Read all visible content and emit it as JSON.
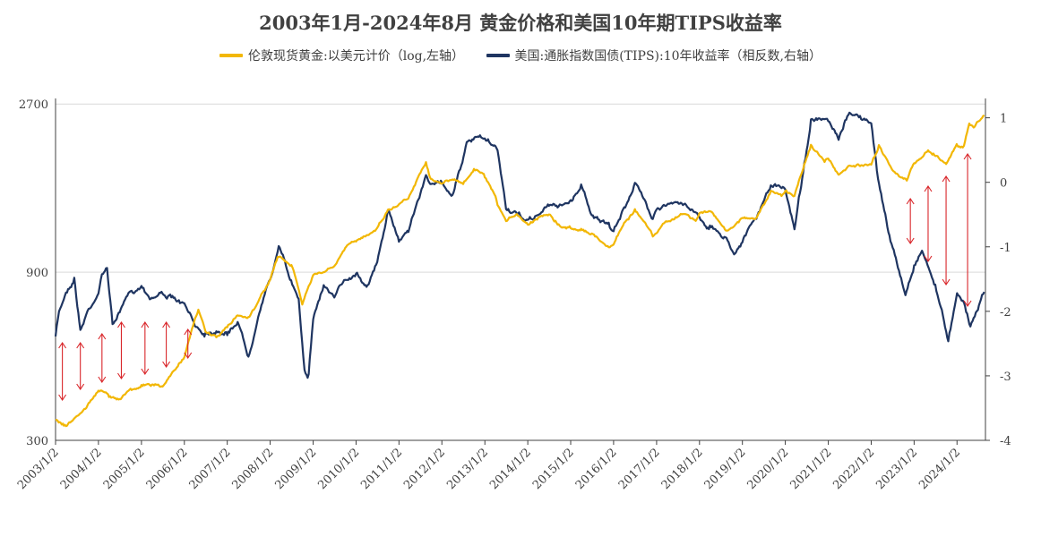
{
  "title": "2003年1月-2024年8月 黄金价格和美国10年期TIPS收益率",
  "colors": {
    "gold": "#F2B705",
    "tips": "#1F3561",
    "arrow": "#D9262A",
    "grid": "#D9D9D9",
    "axis": "#404040"
  },
  "chart_data": {
    "type": "line",
    "title": "2003年1月-2024年8月 黄金价格和美国10年期TIPS收益率",
    "x": [
      "2003/1/2",
      "2004/1/2",
      "2005/1/2",
      "2006/1/2",
      "2007/1/2",
      "2008/1/2",
      "2009/1/2",
      "2010/1/2",
      "2011/1/2",
      "2012/1/2",
      "2013/1/2",
      "2014/1/2",
      "2015/1/2",
      "2016/1/2",
      "2017/1/2",
      "2018/1/2",
      "2019/1/2",
      "2020/1/2",
      "2021/1/2",
      "2022/1/2",
      "2023/1/2",
      "2024/1/2"
    ],
    "x_tick_labels": [
      "2003/1/2",
      "2004/1/2",
      "2005/1/2",
      "2006/1/2",
      "2007/1/2",
      "2008/1/2",
      "2009/1/2",
      "2010/1/2",
      "2011/1/2",
      "2012/1/2",
      "2013/1/2",
      "2014/1/2",
      "2015/1/2",
      "2016/1/2",
      "2017/1/2",
      "2018/1/2",
      "2019/1/2",
      "2020/1/2",
      "2021/1/2",
      "2022/1/2",
      "2023/1/2",
      "2024/1/2"
    ],
    "left_axis": {
      "scale": "log",
      "ticks": [
        300,
        900,
        2700
      ],
      "ylim": [
        300,
        2800
      ]
    },
    "right_axis": {
      "ticks": [
        1,
        0,
        -1,
        -2,
        -3,
        -4
      ],
      "ylim": [
        -4,
        1.3
      ],
      "inverted_label": "相反数"
    },
    "grid": true,
    "legend_position": "top",
    "series": [
      {
        "name": "伦敦现货黄金:以美元计价（log,左轴）",
        "axis": "left",
        "color": "#F2B705",
        "points": [
          [
            "2003/1/2",
            345
          ],
          [
            "2003/4/1",
            330
          ],
          [
            "2003/7/1",
            350
          ],
          [
            "2003/10/1",
            375
          ],
          [
            "2004/1/2",
            415
          ],
          [
            "2004/4/1",
            400
          ],
          [
            "2004/7/1",
            395
          ],
          [
            "2004/10/1",
            420
          ],
          [
            "2005/1/2",
            428
          ],
          [
            "2005/4/1",
            430
          ],
          [
            "2005/7/1",
            425
          ],
          [
            "2005/10/1",
            470
          ],
          [
            "2006/1/2",
            520
          ],
          [
            "2006/5/1",
            700
          ],
          [
            "2006/7/1",
            610
          ],
          [
            "2006/10/1",
            590
          ],
          [
            "2007/1/2",
            630
          ],
          [
            "2007/4/1",
            680
          ],
          [
            "2007/7/1",
            670
          ],
          [
            "2007/10/1",
            750
          ],
          [
            "2008/1/2",
            860
          ],
          [
            "2008/3/15",
            1000
          ],
          [
            "2008/7/1",
            940
          ],
          [
            "2008/10/1",
            730
          ],
          [
            "2009/1/2",
            880
          ],
          [
            "2009/4/1",
            900
          ],
          [
            "2009/7/1",
            930
          ],
          [
            "2009/10/1",
            1050
          ],
          [
            "2010/1/2",
            1100
          ],
          [
            "2010/4/1",
            1150
          ],
          [
            "2010/7/1",
            1200
          ],
          [
            "2010/10/1",
            1350
          ],
          [
            "2011/1/2",
            1400
          ],
          [
            "2011/4/1",
            1480
          ],
          [
            "2011/8/20",
            1850
          ],
          [
            "2011/10/1",
            1650
          ],
          [
            "2012/1/2",
            1600
          ],
          [
            "2012/4/1",
            1650
          ],
          [
            "2012/7/1",
            1600
          ],
          [
            "2012/10/1",
            1760
          ],
          [
            "2013/1/2",
            1680
          ],
          [
            "2013/4/20",
            1400
          ],
          [
            "2013/7/1",
            1250
          ],
          [
            "2013/10/1",
            1320
          ],
          [
            "2014/1/2",
            1230
          ],
          [
            "2014/4/1",
            1290
          ],
          [
            "2014/7/1",
            1320
          ],
          [
            "2014/10/1",
            1220
          ],
          [
            "2015/1/2",
            1200
          ],
          [
            "2015/4/1",
            1200
          ],
          [
            "2015/7/1",
            1150
          ],
          [
            "2015/12/1",
            1060
          ],
          [
            "2016/1/2",
            1080
          ],
          [
            "2016/4/1",
            1240
          ],
          [
            "2016/7/1",
            1350
          ],
          [
            "2016/12/1",
            1140
          ],
          [
            "2017/1/2",
            1160
          ],
          [
            "2017/4/1",
            1260
          ],
          [
            "2017/9/1",
            1320
          ],
          [
            "2017/12/1",
            1260
          ],
          [
            "2018/1/2",
            1320
          ],
          [
            "2018/4/1",
            1340
          ],
          [
            "2018/8/15",
            1180
          ],
          [
            "2018/12/1",
            1250
          ],
          [
            "2019/1/2",
            1290
          ],
          [
            "2019/5/1",
            1280
          ],
          [
            "2019/9/1",
            1520
          ],
          [
            "2019/12/1",
            1480
          ],
          [
            "2020/1/2",
            1530
          ],
          [
            "2020/3/20",
            1480
          ],
          [
            "2020/8/7",
            2060
          ],
          [
            "2020/12/1",
            1850
          ],
          [
            "2021/1/2",
            1900
          ],
          [
            "2021/3/31",
            1690
          ],
          [
            "2021/7/1",
            1800
          ],
          [
            "2021/12/1",
            1800
          ],
          [
            "2022/1/2",
            1820
          ],
          [
            "2022/3/8",
            2050
          ],
          [
            "2022/7/1",
            1760
          ],
          [
            "2022/11/1",
            1640
          ],
          [
            "2023/1/2",
            1830
          ],
          [
            "2023/5/1",
            2000
          ],
          [
            "2023/10/1",
            1830
          ],
          [
            "2023/12/28",
            2060
          ],
          [
            "2024/1/2",
            2060
          ],
          [
            "2024/3/1",
            2050
          ],
          [
            "2024/4/15",
            2380
          ],
          [
            "2024/6/1",
            2330
          ],
          [
            "2024/8/20",
            2510
          ]
        ]
      },
      {
        "name": "美国:通胀指数国债(TIPS):10年收益率（相反数,右轴）",
        "axis": "right",
        "color": "#1F3561",
        "points": [
          [
            "2003/1/2",
            -2.4
          ],
          [
            "2003/2/1",
            -2.0
          ],
          [
            "2003/4/1",
            -1.7
          ],
          [
            "2003/6/10",
            -1.5
          ],
          [
            "2003/8/1",
            -2.3
          ],
          [
            "2003/10/1",
            -2.0
          ],
          [
            "2004/1/2",
            -1.7
          ],
          [
            "2004/2/1",
            -1.45
          ],
          [
            "2004/3/15",
            -1.3
          ],
          [
            "2004/5/1",
            -2.2
          ],
          [
            "2004/7/1",
            -2.0
          ],
          [
            "2004/10/1",
            -1.7
          ],
          [
            "2005/1/2",
            -1.6
          ],
          [
            "2005/4/1",
            -1.8
          ],
          [
            "2005/7/1",
            -1.7
          ],
          [
            "2005/10/1",
            -1.8
          ],
          [
            "2006/1/2",
            -1.9
          ],
          [
            "2006/4/1",
            -2.2
          ],
          [
            "2006/7/1",
            -2.35
          ],
          [
            "2006/10/1",
            -2.3
          ],
          [
            "2007/1/2",
            -2.35
          ],
          [
            "2007/4/1",
            -2.15
          ],
          [
            "2007/7/1",
            -2.7
          ],
          [
            "2007/10/1",
            -2.0
          ],
          [
            "2008/1/2",
            -1.5
          ],
          [
            "2008/3/15",
            -1.0
          ],
          [
            "2008/6/1",
            -1.4
          ],
          [
            "2008/9/1",
            -1.8
          ],
          [
            "2008/10/20",
            -2.9
          ],
          [
            "2008/11/25",
            -3.0
          ],
          [
            "2009/1/2",
            -2.1
          ],
          [
            "2009/4/1",
            -1.6
          ],
          [
            "2009/7/1",
            -1.8
          ],
          [
            "2009/10/1",
            -1.5
          ],
          [
            "2010/1/2",
            -1.4
          ],
          [
            "2010/4/1",
            -1.6
          ],
          [
            "2010/7/1",
            -1.25
          ],
          [
            "2010/10/1",
            -0.45
          ],
          [
            "2011/1/2",
            -0.9
          ],
          [
            "2011/4/1",
            -0.7
          ],
          [
            "2011/8/20",
            0.1
          ],
          [
            "2011/11/1",
            -0.05
          ],
          [
            "2012/1/2",
            0.0
          ],
          [
            "2012/4/1",
            -0.2
          ],
          [
            "2012/8/1",
            0.6
          ],
          [
            "2012/12/1",
            0.7
          ],
          [
            "2013/1/2",
            0.65
          ],
          [
            "2013/4/20",
            0.5
          ],
          [
            "2013/7/1",
            -0.4
          ],
          [
            "2013/10/1",
            -0.5
          ],
          [
            "2014/1/2",
            -0.6
          ],
          [
            "2014/4/1",
            -0.5
          ],
          [
            "2014/7/1",
            -0.35
          ],
          [
            "2014/10/1",
            -0.35
          ],
          [
            "2015/1/2",
            -0.3
          ],
          [
            "2015/4/1",
            -0.05
          ],
          [
            "2015/7/1",
            -0.5
          ],
          [
            "2015/12/1",
            -0.7
          ],
          [
            "2016/1/2",
            -0.75
          ],
          [
            "2016/4/1",
            -0.4
          ],
          [
            "2016/7/1",
            0.0
          ],
          [
            "2016/12/1",
            -0.55
          ],
          [
            "2017/1/2",
            -0.4
          ],
          [
            "2017/4/1",
            -0.35
          ],
          [
            "2017/9/1",
            -0.35
          ],
          [
            "2017/12/1",
            -0.45
          ],
          [
            "2018/1/2",
            -0.55
          ],
          [
            "2018/4/1",
            -0.7
          ],
          [
            "2018/8/1",
            -0.85
          ],
          [
            "2018/11/1",
            -1.1
          ],
          [
            "2019/1/2",
            -0.9
          ],
          [
            "2019/5/1",
            -0.55
          ],
          [
            "2019/9/1",
            -0.05
          ],
          [
            "2019/12/1",
            -0.1
          ],
          [
            "2020/1/2",
            -0.1
          ],
          [
            "2020/3/20",
            -0.7
          ],
          [
            "2020/8/7",
            0.95
          ],
          [
            "2020/12/1",
            0.95
          ],
          [
            "2021/1/2",
            0.95
          ],
          [
            "2021/3/31",
            0.65
          ],
          [
            "2021/7/1",
            1.1
          ],
          [
            "2021/12/1",
            0.95
          ],
          [
            "2022/1/2",
            0.9
          ],
          [
            "2022/3/1",
            0.05
          ],
          [
            "2022/6/15",
            -0.9
          ],
          [
            "2022/10/20",
            -1.75
          ],
          [
            "2023/1/2",
            -1.3
          ],
          [
            "2023/3/10",
            -1.05
          ],
          [
            "2023/7/1",
            -1.6
          ],
          [
            "2023/10/20",
            -2.45
          ],
          [
            "2024/1/2",
            -1.7
          ],
          [
            "2024/3/1",
            -1.85
          ],
          [
            "2024/4/25",
            -2.25
          ],
          [
            "2024/6/1",
            -2.05
          ],
          [
            "2024/8/20",
            -1.7
          ]
        ]
      }
    ],
    "annotations": [
      {
        "type": "divergence-arrows",
        "period": "2003–2006",
        "color": "#D9262A"
      },
      {
        "type": "divergence-arrows",
        "period": "2022–2024",
        "color": "#D9262A"
      }
    ]
  }
}
